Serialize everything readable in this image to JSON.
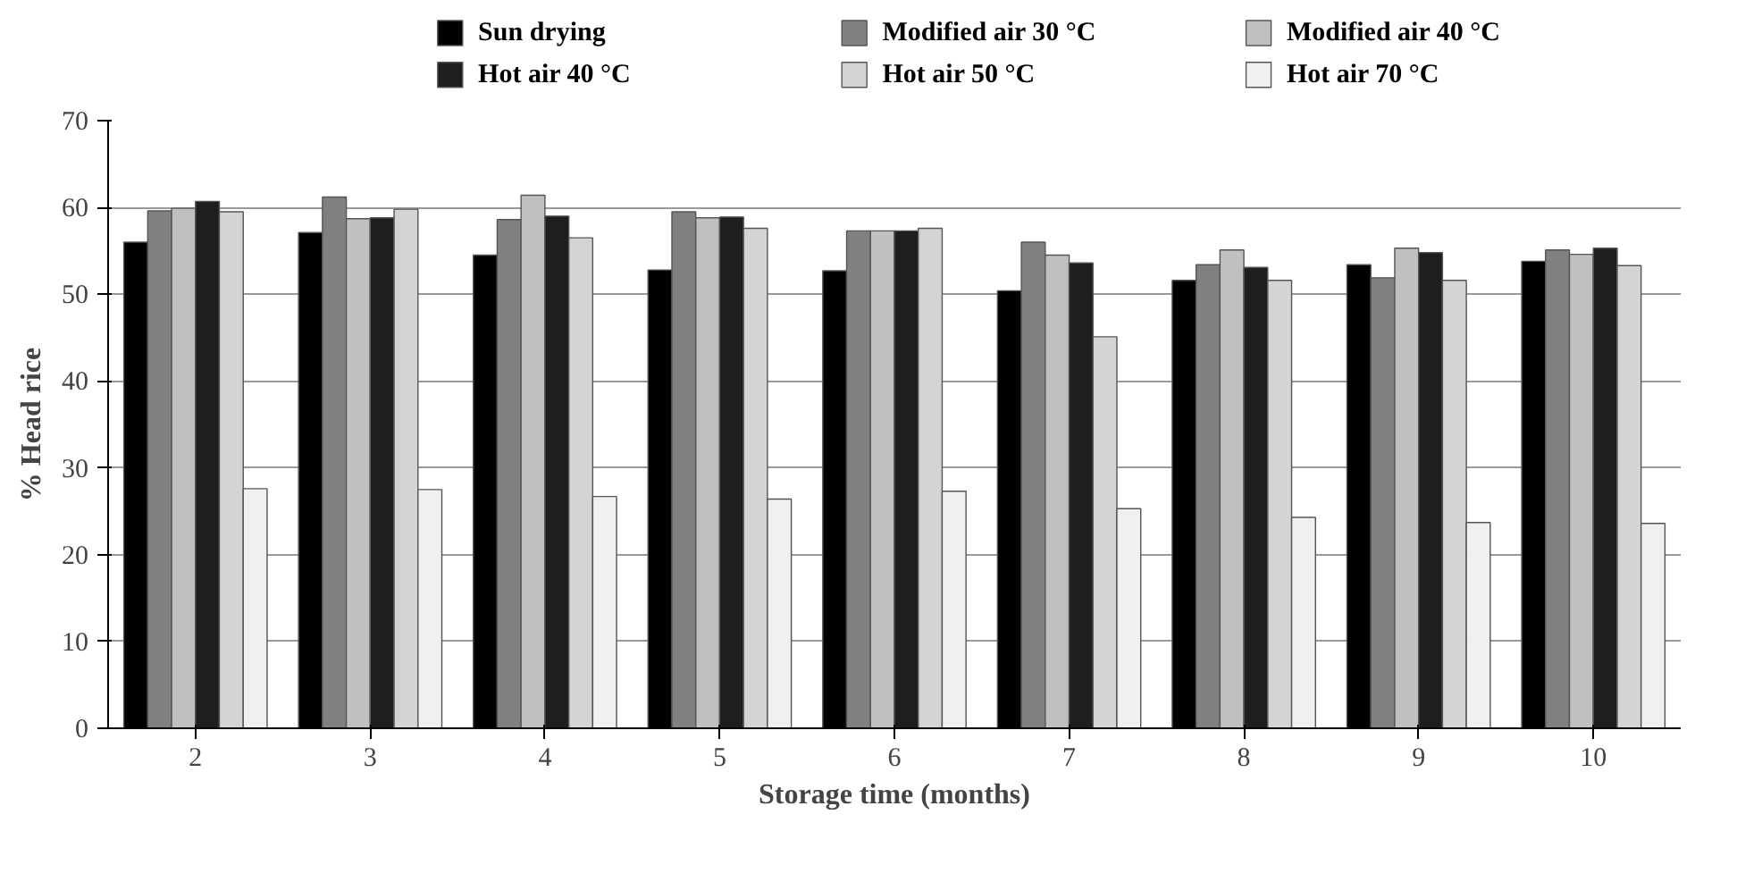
{
  "chart_data": {
    "type": "bar",
    "xlabel": "Storage time (months)",
    "ylabel": "% Head rice",
    "categories": [
      "2",
      "3",
      "4",
      "5",
      "6",
      "7",
      "8",
      "9",
      "10"
    ],
    "series": [
      {
        "name": "Sun drying",
        "color": "#000000",
        "values": [
          56.0,
          57.1,
          54.5,
          52.8,
          52.7,
          50.4,
          51.6,
          53.4,
          53.8
        ]
      },
      {
        "name": "Modified air 30 °C",
        "color": "#808080",
        "values": [
          59.6,
          61.2,
          58.6,
          59.5,
          57.3,
          56.0,
          53.4,
          51.9,
          55.1
        ]
      },
      {
        "name": "Modified air 40 °C",
        "color": "#c0c0c0",
        "values": [
          59.9,
          58.7,
          61.4,
          58.8,
          57.3,
          54.5,
          55.1,
          55.3,
          54.6
        ]
      },
      {
        "name": "Hot air 40 °C",
        "color": "#1e1e1e",
        "values": [
          60.7,
          58.8,
          59.0,
          58.9,
          57.3,
          53.6,
          53.1,
          54.8,
          55.3
        ]
      },
      {
        "name": "Hot air 50 °C",
        "color": "#d4d4d4",
        "values": [
          59.5,
          59.8,
          56.5,
          57.6,
          57.6,
          45.1,
          51.6,
          51.6,
          53.3
        ]
      },
      {
        "name": "Hot air 70 °C",
        "color": "#f0f0f0",
        "values": [
          27.6,
          27.5,
          26.7,
          26.4,
          27.3,
          25.3,
          24.3,
          23.7,
          23.6
        ]
      }
    ],
    "ylim": [
      0,
      70
    ],
    "yticks": [
      0,
      10,
      20,
      30,
      40,
      50,
      60,
      70
    ],
    "grid": "y",
    "legend": "top"
  }
}
